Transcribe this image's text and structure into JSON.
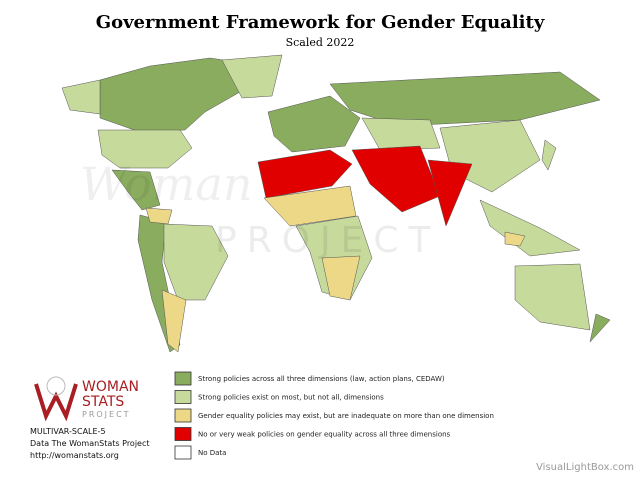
{
  "header": {
    "title": "Government Framework for Gender Equality",
    "subtitle": "Scaled 2022"
  },
  "watermark": {
    "script": "Woman",
    "word": "PROJECT",
    "site": "VisualLightBox.com"
  },
  "legend": {
    "items": [
      {
        "label": "Strong policies across all three dimensions (law, action plans, CEDAW)",
        "color": "#8aac5e"
      },
      {
        "label": "Strong policies exist on most, but not all, dimensions",
        "color": "#c6da9c"
      },
      {
        "label": "Gender equality policies may exist, but are inadequate on more than one dimension",
        "color": "#ecd886"
      },
      {
        "label": "No or very weak policies on gender equality across all three dimensions",
        "color": "#e00000"
      },
      {
        "label": "No Data",
        "color": "#ffffff"
      }
    ]
  },
  "logo": {
    "line1": "WOMAN",
    "line2": "STATS",
    "line3": "PROJECT"
  },
  "source": {
    "code": "MULTIVAR-SCALE-5",
    "data": "Data The WomanStats Project",
    "url": "http://womanstats.org"
  }
}
